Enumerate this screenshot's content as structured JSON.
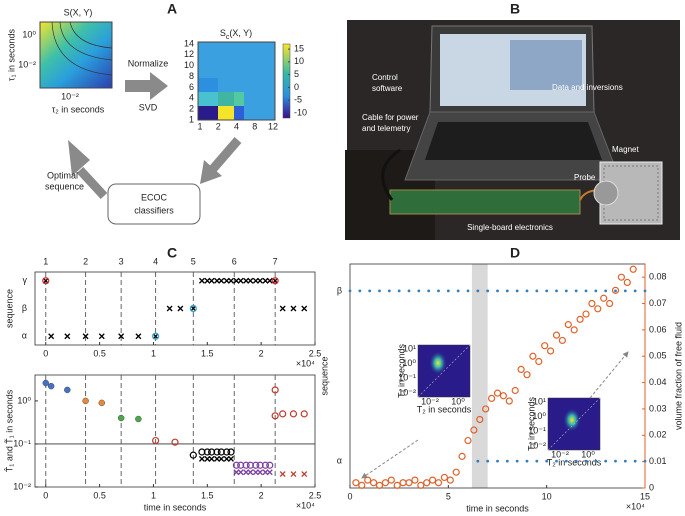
{
  "figure": {
    "panel_labels": [
      "A",
      "B",
      "C",
      "D"
    ],
    "diagram": {
      "heatmap1": {
        "title": "S(X, Y)",
        "ylabel": "τ₁ in seconds",
        "xlabel": "τ₂ in seconds",
        "yticks": [
          "10⁰",
          "10⁻²"
        ],
        "xticks": [
          "10⁻²"
        ]
      },
      "heatmap2": {
        "title_main": "S",
        "title_sub": "c",
        "title_rest": "(X, Y)",
        "yticks": [
          "14",
          "12",
          "10",
          "8",
          "6",
          "4",
          "2",
          "1"
        ],
        "xticks": [
          "1",
          "2",
          "4",
          "8",
          "12"
        ],
        "clim": [
          -12,
          17
        ],
        "colorbar_ticks": [
          15,
          10,
          5,
          0,
          -5,
          -10
        ]
      },
      "arrow_top": [
        "Normalize",
        "SVD"
      ],
      "box": [
        "ECOC",
        "classifiers"
      ],
      "arrow_back": [
        "Optimal",
        "sequence"
      ]
    },
    "photo": {
      "labels": {
        "control": [
          "Control",
          "software"
        ],
        "data": "Data and inversions",
        "cable": [
          "Cable for power",
          "and telemetry"
        ],
        "magnet": "Magnet",
        "probe": "Probe",
        "board": "Single-board electronics"
      }
    }
  },
  "chart_data": [
    {
      "type": "scatter",
      "ylabel": "sequence",
      "y_categories": [
        "α",
        "β",
        "γ"
      ],
      "xlim": [
        -0.1,
        2.5
      ],
      "xticks": [
        0,
        0.5,
        1,
        1.5,
        2,
        2.5
      ],
      "x_exponent_label": "×10⁴",
      "event_lines": {
        "x": [
          0,
          0.37,
          0.7,
          1.02,
          1.37,
          1.75,
          2.13
        ],
        "labels": [
          "1",
          "2",
          "3",
          "4",
          "5",
          "6",
          "7"
        ]
      },
      "series": [
        {
          "marker": "x",
          "color": "#000000",
          "x": [
            0.05,
            0.2,
            0.37,
            0.52,
            0.7,
            0.86,
            1.02,
            1.15,
            1.25,
            1.37,
            0,
            1.45,
            1.5,
            1.54,
            1.59,
            1.63,
            1.68,
            1.72,
            1.77,
            1.81,
            1.86,
            1.9,
            1.95,
            1.99,
            2.04,
            2.08,
            2.13,
            2.2,
            2.3,
            2.4
          ],
          "values": [
            "α",
            "α",
            "α",
            "α",
            "α",
            "α",
            "α",
            "β",
            "β",
            "β",
            "γ",
            "γ",
            "γ",
            "γ",
            "γ",
            "γ",
            "γ",
            "γ",
            "γ",
            "γ",
            "γ",
            "γ",
            "γ",
            "γ",
            "γ",
            "γ",
            "γ",
            "β",
            "β",
            "β"
          ]
        },
        {
          "marker": "ring",
          "color": "#d62728",
          "x": [
            0,
            2.13
          ],
          "values": [
            "γ",
            "γ"
          ]
        },
        {
          "marker": "ring",
          "color": "#2aa7d6",
          "x": [
            1.02,
            1.37
          ],
          "values": [
            "α",
            "β"
          ]
        }
      ]
    },
    {
      "type": "scatter",
      "ylabel": "T̂₁ and T̃₁ in seconds",
      "xlabel": "time in seconds",
      "log_y": true,
      "xlim": [
        -0.1,
        2.5
      ],
      "xticks": [
        0,
        0.5,
        1,
        1.5,
        2,
        2.5
      ],
      "x_exponent_label": "×10⁴",
      "ylim": [
        0.01,
        4
      ],
      "yticks": [
        {
          "value": 1,
          "label": "10⁰"
        },
        {
          "value": 0.1,
          "label": "10⁻¹"
        },
        {
          "value": 0.01,
          "label": "10⁻²"
        }
      ],
      "reference_line": 0.1,
      "series": [
        {
          "marker": "dot",
          "color": "#4472c4",
          "x": [
            0,
            0.05,
            0.2
          ],
          "values": [
            2.6,
            2.2,
            1.8
          ]
        },
        {
          "marker": "dot",
          "color": "#e8883a",
          "x": [
            0.37,
            0.52
          ],
          "values": [
            1.0,
            0.9
          ]
        },
        {
          "marker": "dot",
          "color": "#4aa84a",
          "x": [
            0.7,
            0.86
          ],
          "values": [
            0.4,
            0.38
          ]
        },
        {
          "marker": "ring",
          "color": "#c0392b",
          "x": [
            1.02,
            1.2
          ],
          "values": [
            0.12,
            0.11
          ]
        },
        {
          "marker": "ring",
          "color": "#000000",
          "x": [
            1.37,
            1.45,
            1.5,
            1.54,
            1.59,
            1.63,
            1.68,
            1.72
          ],
          "values": [
            0.055,
            0.065,
            0.065,
            0.065,
            0.065,
            0.065,
            0.065,
            0.065
          ]
        },
        {
          "marker": "x",
          "color": "#000000",
          "x": [
            1.45,
            1.5,
            1.54,
            1.59,
            1.63,
            1.68,
            1.72
          ],
          "values": [
            0.045,
            0.045,
            0.045,
            0.045,
            0.045,
            0.045,
            0.045
          ]
        },
        {
          "marker": "ring",
          "color": "#7b3fa0",
          "x": [
            1.77,
            1.81,
            1.86,
            1.9,
            1.95,
            1.99,
            2.04,
            2.08
          ],
          "values": [
            0.032,
            0.032,
            0.032,
            0.032,
            0.032,
            0.032,
            0.032,
            0.032
          ]
        },
        {
          "marker": "x",
          "color": "#7b3fa0",
          "x": [
            1.77,
            1.81,
            1.86,
            1.9,
            1.95,
            1.99,
            2.04,
            2.08
          ],
          "values": [
            0.022,
            0.022,
            0.022,
            0.022,
            0.022,
            0.022,
            0.022,
            0.022
          ]
        },
        {
          "marker": "ring",
          "color": "#c0392b",
          "x": [
            2.13,
            2.13,
            2.2,
            2.3,
            2.4
          ],
          "values": [
            1.8,
            0.45,
            0.5,
            0.5,
            0.5
          ]
        },
        {
          "marker": "x",
          "color": "#c0392b",
          "x": [
            2.2,
            2.3,
            2.4
          ],
          "values": [
            0.02,
            0.02,
            0.02
          ]
        }
      ]
    },
    {
      "type": "scatter",
      "ylabel": "sequence",
      "xlabel": "time in seconds",
      "y_categories": [
        "α",
        "β"
      ],
      "xlim": [
        0,
        15
      ],
      "xticks": [
        0,
        5,
        10,
        15
      ],
      "x_exponent_label": "×10⁴",
      "y2lim": [
        0,
        0.085
      ],
      "y2ticks": [
        0,
        0.01,
        0.02,
        0.03,
        0.04,
        0.05,
        0.06,
        0.07,
        0.08
      ],
      "y2label": "volume fraction of free fluid",
      "band": [
        6.2,
        7.0
      ],
      "insets": [
        {
          "ylabel": "T₁ in seconds",
          "xlabel": "T₂ in seconds",
          "yticks": [
            "10¹",
            "10⁰",
            "10⁻¹",
            "10⁻²"
          ],
          "xticks": [
            "10⁻²",
            "10⁰"
          ]
        },
        {
          "ylabel": "T₁ in seconds",
          "xlabel": "T₂ in seconds",
          "yticks": [
            "10¹",
            "10⁰",
            "10⁻¹",
            "10⁻²"
          ],
          "xticks": [
            "10⁻²",
            "10⁰"
          ]
        }
      ],
      "series": [
        {
          "marker": "small",
          "color": "#2f7fc1",
          "x": [
            0,
            0.5,
            1,
            1.5,
            2,
            2.5,
            3,
            3.5,
            4,
            4.5,
            5,
            5.5,
            6,
            6.5,
            7,
            7.5,
            8,
            8.5,
            9,
            9.5,
            10,
            10.5,
            11,
            11.5,
            12,
            12.5,
            13,
            13.5,
            14,
            14.5,
            15,
            6.5,
            7,
            7.5,
            8,
            8.5,
            9,
            9.5,
            10,
            10.5,
            11,
            11.5,
            12,
            12.5,
            13,
            13.5,
            14,
            14.5,
            15
          ],
          "values": [
            "β",
            "β",
            "β",
            "β",
            "β",
            "β",
            "β",
            "β",
            "β",
            "β",
            "β",
            "β",
            "β",
            "β",
            "β",
            "β",
            "β",
            "β",
            "β",
            "β",
            "β",
            "β",
            "β",
            "β",
            "β",
            "β",
            "β",
            "β",
            "β",
            "β",
            "β",
            "α",
            "α",
            "α",
            "α",
            "α",
            "α",
            "α",
            "α",
            "α",
            "α",
            "α",
            "α",
            "α",
            "α",
            "α",
            "α",
            "α",
            "α"
          ]
        },
        {
          "marker": "ring",
          "color": "#e0622a",
          "axis": "y2",
          "x": [
            0.3,
            0.6,
            0.9,
            1.2,
            1.5,
            1.8,
            2.1,
            2.4,
            2.7,
            3.0,
            3.3,
            3.6,
            3.9,
            4.2,
            4.5,
            4.8,
            5.1,
            5.4,
            5.7,
            6.0,
            6.3,
            6.6,
            6.9,
            7.2,
            7.5,
            7.8,
            8.1,
            8.4,
            8.7,
            9.0,
            9.3,
            9.6,
            9.9,
            10.2,
            10.5,
            10.8,
            11.1,
            11.4,
            11.7,
            12.0,
            12.3,
            12.6,
            12.9,
            13.2,
            13.5,
            13.8,
            14.1,
            14.4
          ],
          "values": [
            0.002,
            0.001,
            0.003,
            0.002,
            0.001,
            0.002,
            0.003,
            0.001,
            0.002,
            0.002,
            0.003,
            0.001,
            0.002,
            0.003,
            0.002,
            0.004,
            0.003,
            0.006,
            0.012,
            0.018,
            0.022,
            0.026,
            0.03,
            0.034,
            0.036,
            0.035,
            0.033,
            0.037,
            0.045,
            0.043,
            0.05,
            0.048,
            0.054,
            0.052,
            0.058,
            0.056,
            0.062,
            0.06,
            0.064,
            0.066,
            0.07,
            0.068,
            0.072,
            0.07,
            0.075,
            0.08,
            0.078,
            0.083
          ]
        }
      ]
    }
  ]
}
